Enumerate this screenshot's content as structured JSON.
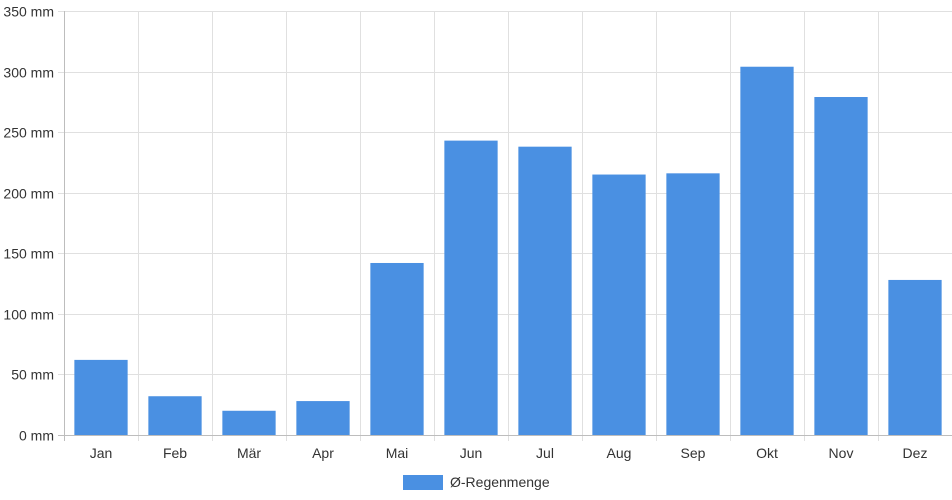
{
  "chart_data": {
    "type": "bar",
    "categories": [
      "Jan",
      "Feb",
      "Mär",
      "Apr",
      "Mai",
      "Jun",
      "Jul",
      "Aug",
      "Sep",
      "Okt",
      "Nov",
      "Dez"
    ],
    "series": [
      {
        "name": "Ø-Regenmenge",
        "values": [
          62,
          32,
          20,
          28,
          142,
          243,
          238,
          215,
          216,
          304,
          279,
          128
        ],
        "color": "#4a90e2"
      }
    ],
    "yaxis": {
      "min": 0,
      "max": 350,
      "step": 50,
      "unit_suffix": " mm",
      "tick_labels": [
        "0 mm",
        "50 mm",
        "100 mm",
        "150 mm",
        "200 mm",
        "250 mm",
        "300 mm",
        "350 mm"
      ]
    },
    "grid": true,
    "legend": {
      "position": "bottom",
      "label": "Ø-Regenmenge"
    }
  },
  "colors": {
    "bar": "#4a90e2",
    "grid": "#e0e0e0",
    "axis": "#bdbdbd",
    "text": "#333333",
    "background": "#ffffff"
  }
}
